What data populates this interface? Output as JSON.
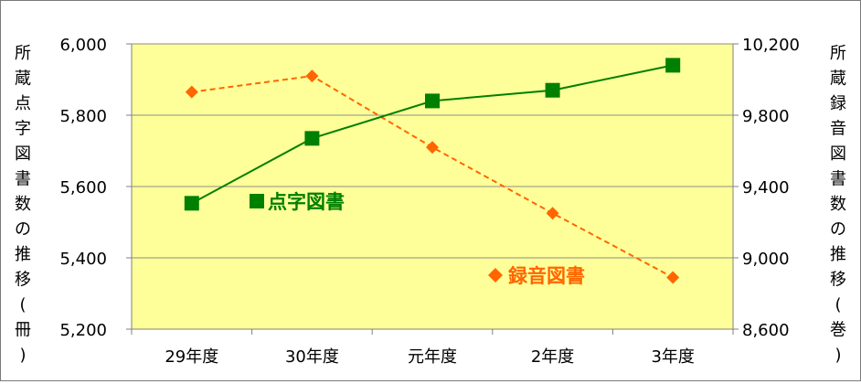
{
  "chart_data": {
    "type": "line",
    "categories": [
      "29年度",
      "30年度",
      "元年度",
      "2年度",
      "3年度"
    ],
    "series": [
      {
        "name": "点字図書",
        "axis": "left",
        "values": [
          5553,
          5735,
          5840,
          5870,
          5940
        ],
        "color": "#008000",
        "marker": "square",
        "line_style": "solid"
      },
      {
        "name": "録音図書",
        "axis": "right",
        "values": [
          9930,
          10020,
          9620,
          9250,
          8890
        ],
        "color": "#ff6600",
        "marker": "diamond",
        "line_style": "dashed"
      }
    ],
    "left_axis": {
      "label": "所蔵点字図書数の推移(冊)",
      "ylim": [
        5200,
        6000
      ],
      "ticks": [
        6000,
        5800,
        5600,
        5400,
        5200
      ],
      "tick_labels": [
        "6,000",
        "5,800",
        "5,600",
        "5,400",
        "5,200"
      ]
    },
    "right_axis": {
      "label": "所蔵録音図書数の推移(巻)",
      "ylim": [
        8600,
        10200
      ],
      "ticks": [
        10200,
        9800,
        9400,
        9000,
        8600
      ],
      "tick_labels": [
        "10,200",
        "9,800",
        "9,400",
        "9,000",
        "8,600"
      ]
    },
    "plot_background": "#ffff99",
    "grid": true,
    "labels": {
      "braille": "点字図書",
      "audio": "録音図書"
    }
  }
}
